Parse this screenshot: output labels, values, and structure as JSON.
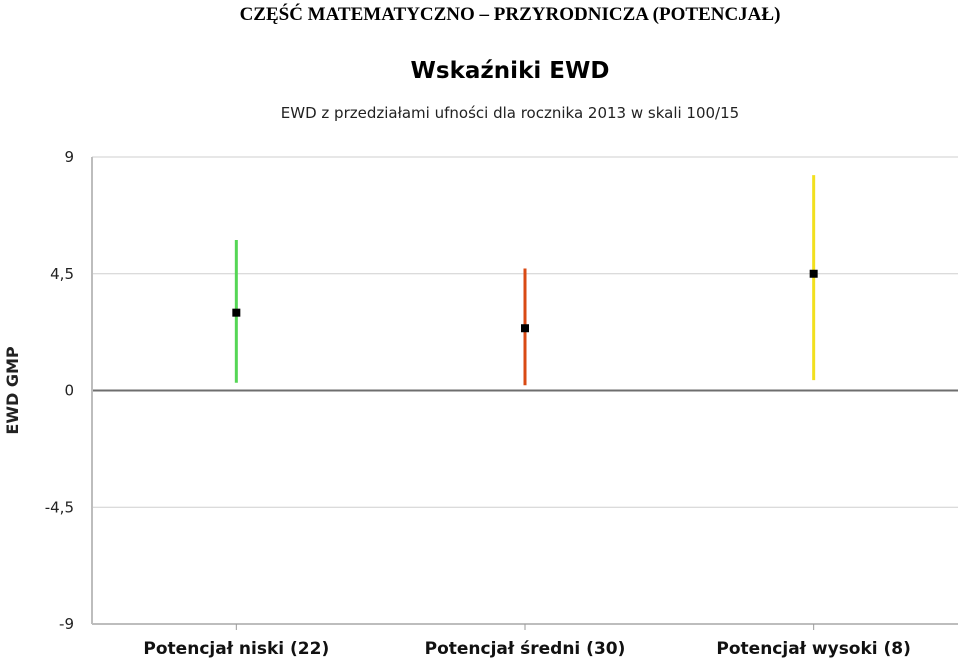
{
  "header": {
    "title": "CZĘŚĆ MATEMATYCZNO – PRZYRODNICZA (POTENCJAŁ)"
  },
  "chart_data": {
    "type": "scatter",
    "title": "Wskaźniki EWD",
    "subtitle": "EWD z przedziałami ufności dla rocznika 2013 w skali 100/15",
    "ylabel": "EWD GMP",
    "xlabel": "",
    "ylim": [
      -9,
      9
    ],
    "yticks": [
      9,
      4.5,
      0,
      -4.5,
      -9
    ],
    "ytick_labels": [
      "9",
      "4,5",
      "0",
      "-4,5",
      "-9"
    ],
    "grid": true,
    "categories": [
      "Potencjał niski (22)",
      "Potencjał średni (30)",
      "Potencjał wysoki (8)"
    ],
    "points": [
      {
        "category": "Potencjał niski (22)",
        "value": 3.0,
        "ci_low": 0.3,
        "ci_high": 5.8,
        "color": "#55d655"
      },
      {
        "category": "Potencjał średni (30)",
        "value": 2.4,
        "ci_low": 0.2,
        "ci_high": 4.7,
        "color": "#d94a14"
      },
      {
        "category": "Potencjał wysoki (8)",
        "value": 4.5,
        "ci_low": 0.4,
        "ci_high": 8.3,
        "color": "#f2e01e"
      }
    ]
  }
}
